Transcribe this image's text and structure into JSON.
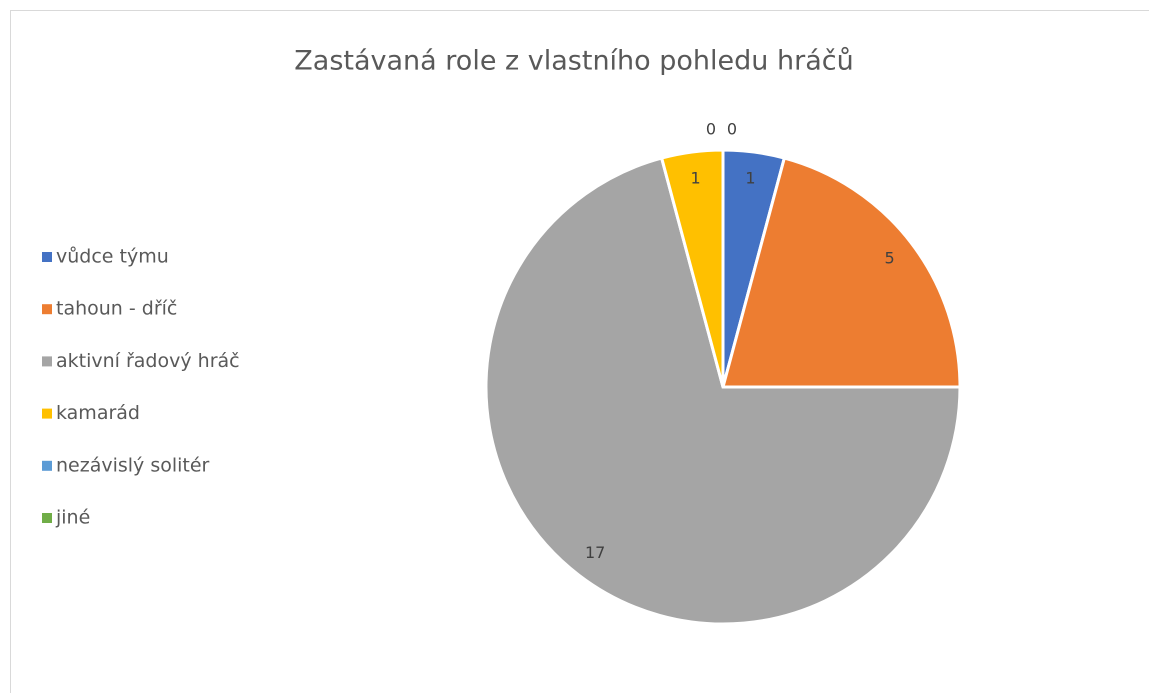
{
  "chart_data": {
    "type": "pie",
    "title": "Zastávaná role z vlastního pohledu hráčů",
    "categories": [
      "vůdce týmu",
      "tahoun - dříč",
      "aktivní řadový hráč",
      "kamarád",
      "nezávislý solitér",
      "jiné"
    ],
    "values": [
      1,
      5,
      17,
      1,
      0,
      0
    ],
    "colors": [
      "#4472c4",
      "#ed7d31",
      "#a5a5a5",
      "#ffc000",
      "#5b9bd5",
      "#70ad47"
    ],
    "legend": "left"
  }
}
